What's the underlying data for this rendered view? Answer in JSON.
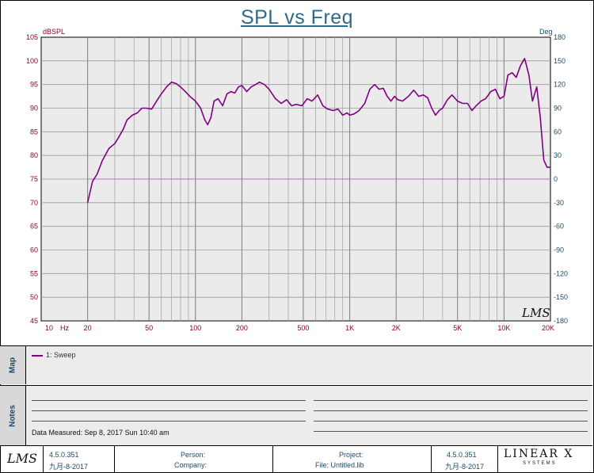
{
  "title": "SPL vs Freq",
  "chart_data": {
    "type": "line",
    "title": "SPL vs Freq",
    "xlabel": "Hz",
    "ylabel": "dBSPL",
    "y2label": "Deg",
    "xscale": "log",
    "xlim": [
      10,
      20000
    ],
    "ylim": [
      45,
      105
    ],
    "y2lim": [
      -180,
      180
    ],
    "x_ticks": [
      "10",
      "20",
      "50",
      "100",
      "200",
      "500",
      "1K",
      "2K",
      "5K",
      "10K",
      "20K"
    ],
    "x_tick_values": [
      10,
      20,
      50,
      100,
      200,
      500,
      1000,
      2000,
      5000,
      10000,
      20000
    ],
    "y_ticks": [
      45,
      50,
      55,
      60,
      65,
      70,
      75,
      80,
      85,
      90,
      95,
      100,
      105
    ],
    "y2_ticks": [
      -180,
      -150,
      -120,
      -90,
      -60,
      -30,
      0,
      30,
      60,
      90,
      120,
      150,
      180
    ],
    "grid": true,
    "legend": "bottom panel",
    "series": [
      {
        "name": "1: Sweep",
        "color": "#800080",
        "x": [
          20,
          21.5,
          23,
          25,
          27.5,
          30,
          32,
          34,
          36,
          39,
          42,
          45,
          48,
          52,
          56,
          60,
          65,
          70,
          75,
          80,
          86,
          92,
          100,
          108,
          115,
          120,
          126,
          132,
          140,
          150,
          160,
          170,
          180,
          190,
          200,
          215,
          230,
          245,
          260,
          280,
          300,
          330,
          360,
          390,
          420,
          450,
          490,
          530,
          570,
          620,
          670,
          720,
          780,
          840,
          900,
          960,
          1000,
          1070,
          1150,
          1250,
          1350,
          1450,
          1550,
          1650,
          1750,
          1850,
          1950,
          2050,
          2200,
          2400,
          2600,
          2800,
          3000,
          3200,
          3400,
          3600,
          3800,
          4000,
          4300,
          4600,
          5000,
          5400,
          5800,
          6200,
          6600,
          7100,
          7600,
          8200,
          8800,
          9400,
          10000,
          10600,
          11300,
          12000,
          12800,
          13600,
          14500,
          15300,
          16300,
          17200,
          18100,
          19000,
          20000
        ],
        "values": [
          70,
          74.5,
          76,
          79,
          81.5,
          82.5,
          84,
          85.5,
          87.5,
          88.5,
          89,
          90,
          90,
          89.8,
          91.5,
          93,
          94.5,
          95.5,
          95.2,
          94.5,
          93.5,
          92.5,
          91.5,
          90,
          87.5,
          86.5,
          88,
          91.5,
          92,
          90.5,
          93,
          93.5,
          93.2,
          94.5,
          94.8,
          93.5,
          94.5,
          95,
          95.5,
          95,
          94,
          92,
          91,
          91.8,
          90.5,
          90.8,
          90.5,
          92,
          91.5,
          92.8,
          90.5,
          89.8,
          89.5,
          89.8,
          88.5,
          89,
          88.5,
          88.8,
          89.5,
          91,
          94,
          95,
          94,
          94.2,
          92.5,
          91.5,
          92.5,
          91.8,
          91.5,
          92.5,
          93.8,
          92.5,
          92.8,
          92.2,
          90,
          88.5,
          89.5,
          90,
          91.8,
          92.8,
          91.5,
          91,
          91,
          89.5,
          90.5,
          91.5,
          92,
          93.5,
          94,
          92,
          92.5,
          97,
          97.5,
          96.5,
          99,
          100.5,
          97,
          91.5,
          94.5,
          88,
          79,
          77.5,
          77.5
        ],
        "phase": [
          0
        ]
      }
    ]
  },
  "watermark": "LMS",
  "legend": {
    "items": [
      "1: Sweep"
    ]
  },
  "sections": {
    "map": "Map",
    "notes": "Notes"
  },
  "notes": {
    "measured": "Data Measured: Sep 8, 2017 Sun 10:40 am"
  },
  "footer": {
    "logo": "LMS",
    "version_left": "4.5.0.351",
    "date_left": "九月-8-2017",
    "person_label": "Person:",
    "company_label": "Company:",
    "project_label": "Project:",
    "file_label": "File: Untitled.lib",
    "version_right": "4.5.0.351",
    "date_right": "九月-8-2017",
    "brand": "LINEAR X",
    "brand_sub": "SYSTEMS"
  }
}
